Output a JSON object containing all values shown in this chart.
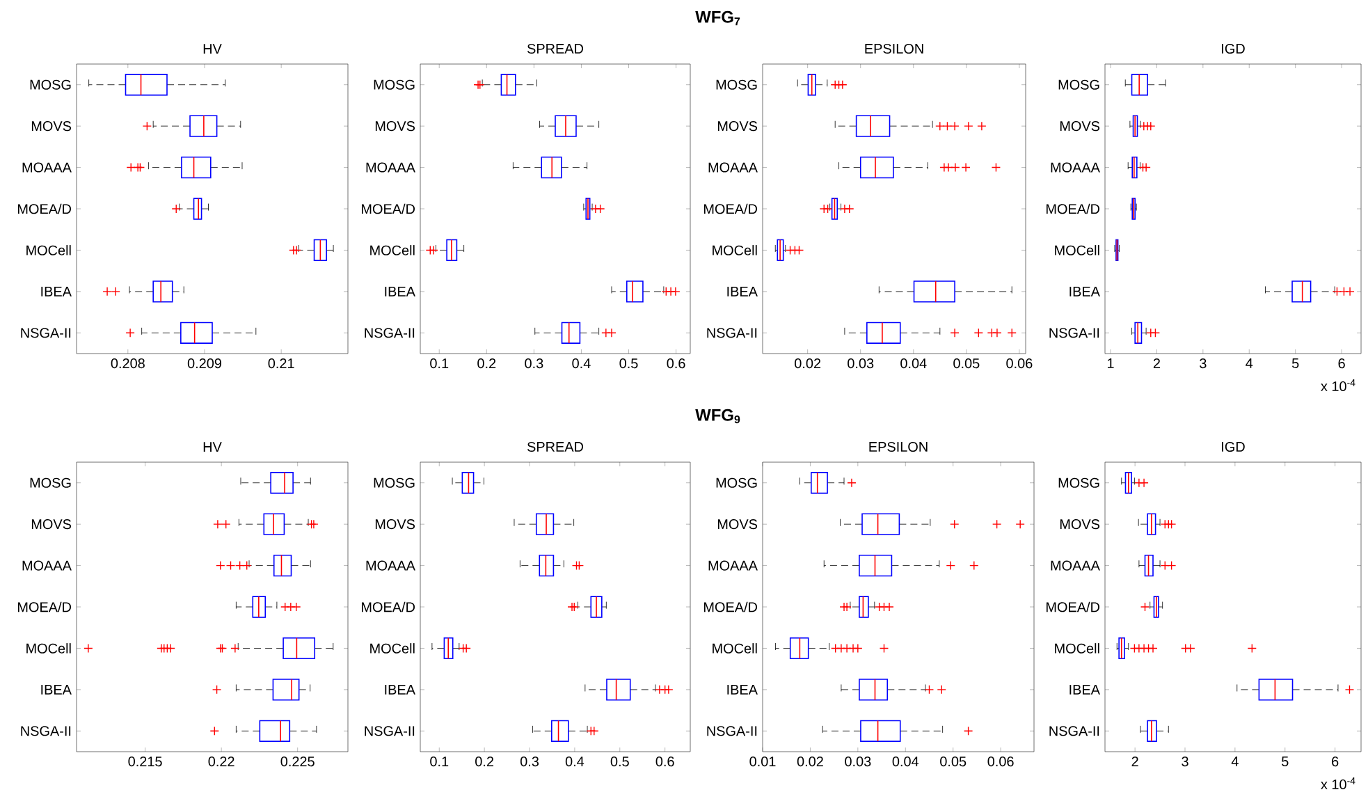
{
  "chart_data": [
    {
      "type": "box",
      "title": "HV",
      "orientation": "horizontal",
      "color": "#0000ff",
      "annotations": [
        "WFG$_{7}$"
      ],
      "categories": [
        "MOSG",
        "MOVS",
        "MOAAA",
        "MOEA/D",
        "MOCell",
        "IBEA",
        "NSGA-II"
      ],
      "xlim": [
        0.20733,
        0.21087
      ],
      "xticks": [
        0.208,
        0.209,
        0.21
      ],
      "boxes": [
        {
          "low": 0.20749,
          "q1": 0.20797,
          "median": 0.20817,
          "q3": 0.20851,
          "high": 0.20927
        },
        {
          "low": 0.20833,
          "q1": 0.20881,
          "median": 0.20899,
          "q3": 0.20916,
          "high": 0.20947,
          "outliers": [
            0.20825
          ]
        },
        {
          "low": 0.20827,
          "q1": 0.2087,
          "median": 0.20886,
          "q3": 0.20908,
          "high": 0.20949,
          "outliers": [
            0.20804,
            0.20813,
            0.20816
          ]
        },
        {
          "low": 0.20867,
          "q1": 0.20886,
          "median": 0.20892,
          "q3": 0.20896,
          "high": 0.20905,
          "outliers": [
            0.20863
          ]
        },
        {
          "low": 0.21023,
          "q1": 0.21043,
          "median": 0.21051,
          "q3": 0.21059,
          "high": 0.21068,
          "outliers": [
            0.21016,
            0.2102
          ]
        },
        {
          "low": 0.20802,
          "q1": 0.20833,
          "median": 0.20843,
          "q3": 0.20858,
          "high": 0.20873,
          "outliers": [
            0.20773,
            0.20784
          ]
        },
        {
          "low": 0.20818,
          "q1": 0.20869,
          "median": 0.20887,
          "q3": 0.2091,
          "high": 0.20967,
          "outliers": [
            0.20803
          ]
        }
      ]
    },
    {
      "type": "box",
      "title": "SPREAD",
      "orientation": "horizontal",
      "color": "#0000ff",
      "categories": [
        "MOSG",
        "MOVS",
        "MOAAA",
        "MOEA/D",
        "MOCell",
        "IBEA",
        "NSGA-II"
      ],
      "xlim": [
        0.06,
        0.63
      ],
      "xticks": [
        0.1,
        0.2,
        0.3,
        0.4,
        0.5,
        0.6
      ],
      "boxes": [
        {
          "low": 0.191,
          "q1": 0.231,
          "median": 0.243,
          "q3": 0.261,
          "high": 0.306,
          "outliers": [
            0.182,
            0.186
          ]
        },
        {
          "low": 0.312,
          "q1": 0.345,
          "median": 0.367,
          "q3": 0.389,
          "high": 0.437
        },
        {
          "low": 0.256,
          "q1": 0.316,
          "median": 0.338,
          "q3": 0.358,
          "high": 0.412
        },
        {
          "low": 0.405,
          "q1": 0.41,
          "median": 0.414,
          "q3": 0.418,
          "high": 0.423,
          "outliers": [
            0.43,
            0.44
          ]
        },
        {
          "low": 0.093,
          "q1": 0.116,
          "median": 0.126,
          "q3": 0.137,
          "high": 0.152,
          "outliers": [
            0.081,
            0.088
          ]
        },
        {
          "low": 0.464,
          "q1": 0.496,
          "median": 0.508,
          "q3": 0.53,
          "high": 0.574,
          "outliers": [
            0.579,
            0.589,
            0.599
          ]
        },
        {
          "low": 0.302,
          "q1": 0.359,
          "median": 0.374,
          "q3": 0.397,
          "high": 0.437,
          "outliers": [
            0.452,
            0.464
          ]
        }
      ]
    },
    {
      "type": "box",
      "title": "EPSILON",
      "orientation": "horizontal",
      "color": "#0000ff",
      "categories": [
        "MOSG",
        "MOVS",
        "MOAAA",
        "MOEA/D",
        "MOCell",
        "IBEA",
        "NSGA-II"
      ],
      "xlim": [
        0.0115,
        0.0612
      ],
      "xticks": [
        0.02,
        0.03,
        0.04,
        0.05,
        0.06
      ],
      "boxes": [
        {
          "low": 0.0181,
          "q1": 0.0201,
          "median": 0.0208,
          "q3": 0.0215,
          "high": 0.0237,
          "outliers": [
            0.0252,
            0.0259,
            0.0266
          ]
        },
        {
          "low": 0.0252,
          "q1": 0.0292,
          "median": 0.0319,
          "q3": 0.0355,
          "high": 0.0436,
          "outliers": [
            0.045,
            0.0464,
            0.0478,
            0.0504,
            0.0529
          ]
        },
        {
          "low": 0.0259,
          "q1": 0.03,
          "median": 0.0328,
          "q3": 0.0362,
          "high": 0.0427,
          "outliers": [
            0.0458,
            0.0466,
            0.0479,
            0.0499,
            0.0556
          ]
        },
        {
          "low": 0.0242,
          "q1": 0.0246,
          "median": 0.0251,
          "q3": 0.0256,
          "high": 0.0263,
          "outliers": [
            0.0231,
            0.0238,
            0.027,
            0.0279
          ]
        },
        {
          "low": 0.0139,
          "q1": 0.0143,
          "median": 0.0148,
          "q3": 0.0154,
          "high": 0.0158,
          "outliers": [
            0.0167,
            0.0176,
            0.0184
          ]
        },
        {
          "low": 0.0335,
          "q1": 0.0401,
          "median": 0.0442,
          "q3": 0.0478,
          "high": 0.0586
        },
        {
          "low": 0.027,
          "q1": 0.0312,
          "median": 0.0341,
          "q3": 0.0375,
          "high": 0.045,
          "outliers": [
            0.0478,
            0.0523,
            0.0548,
            0.0558,
            0.0586
          ]
        }
      ]
    },
    {
      "type": "box",
      "title": "IGD",
      "xlabel": "x 10$^{-4}$",
      "orientation": "horizontal",
      "color": "#0000ff",
      "categories": [
        "MOSG",
        "MOVS",
        "MOAAA",
        "MOEA/D",
        "MOCell",
        "IBEA",
        "NSGA-II"
      ],
      "xlim": [
        0.88,
        6.42
      ],
      "xticks": [
        1,
        2,
        3,
        4,
        5,
        6
      ],
      "boxes": [
        {
          "low": 1.32,
          "q1": 1.46,
          "median": 1.62,
          "q3": 1.8,
          "high": 2.19
        },
        {
          "low": 1.42,
          "q1": 1.49,
          "median": 1.53,
          "q3": 1.58,
          "high": 1.65,
          "outliers": [
            1.72,
            1.8,
            1.87
          ]
        },
        {
          "low": 1.38,
          "q1": 1.47,
          "median": 1.51,
          "q3": 1.57,
          "high": 1.64,
          "outliers": [
            1.7,
            1.77
          ]
        },
        {
          "low": 1.44,
          "q1": 1.47,
          "median": 1.5,
          "q3": 1.53,
          "high": 1.56
        },
        {
          "low": 1.09,
          "q1": 1.12,
          "median": 1.14,
          "q3": 1.16,
          "high": 1.19
        },
        {
          "low": 4.35,
          "q1": 4.93,
          "median": 5.15,
          "q3": 5.33,
          "high": 5.85,
          "outliers": [
            5.9,
            6.05,
            6.18
          ]
        },
        {
          "low": 1.46,
          "q1": 1.53,
          "median": 1.59,
          "q3": 1.67,
          "high": 1.77,
          "outliers": [
            1.87,
            1.97
          ]
        }
      ]
    },
    {
      "type": "box",
      "title": "HV",
      "orientation": "horizontal",
      "color": "#0000ff",
      "annotations": [
        "WFG$_{9}$"
      ],
      "categories": [
        "MOSG",
        "MOVS",
        "MOAAA",
        "MOEA/D",
        "MOCell",
        "IBEA",
        "NSGA-II"
      ],
      "xlim": [
        0.2105,
        0.2283
      ],
      "xticks": [
        0.215,
        0.22,
        0.225
      ],
      "boxes": [
        {
          "low": 0.22127,
          "q1": 0.22324,
          "median": 0.22415,
          "q3": 0.2247,
          "high": 0.22585
        },
        {
          "low": 0.22115,
          "q1": 0.22279,
          "median": 0.22342,
          "q3": 0.22412,
          "high": 0.2257,
          "outliers": [
            0.21976,
            0.2203,
            0.22591,
            0.22606
          ]
        },
        {
          "low": 0.22182,
          "q1": 0.22345,
          "median": 0.22394,
          "q3": 0.22458,
          "high": 0.22585,
          "outliers": [
            0.21994,
            0.22061,
            0.22121,
            0.22167
          ]
        },
        {
          "low": 0.22097,
          "q1": 0.22206,
          "median": 0.22245,
          "q3": 0.22288,
          "high": 0.22364,
          "outliers": [
            0.22418,
            0.22455,
            0.22491
          ]
        },
        {
          "low": 0.2211,
          "q1": 0.22406,
          "median": 0.22494,
          "q3": 0.22612,
          "high": 0.22733,
          "outliers": [
            0.21127,
            0.21606,
            0.21624,
            0.21645,
            0.21667,
            0.21994,
            0.22006,
            0.2209
          ]
        },
        {
          "low": 0.22097,
          "q1": 0.22339,
          "median": 0.22461,
          "q3": 0.22509,
          "high": 0.22582,
          "outliers": [
            0.2197
          ]
        },
        {
          "low": 0.22097,
          "q1": 0.22252,
          "median": 0.22388,
          "q3": 0.22448,
          "high": 0.22624,
          "outliers": [
            0.21955
          ]
        }
      ]
    },
    {
      "type": "box",
      "title": "SPREAD",
      "orientation": "horizontal",
      "color": "#0000ff",
      "categories": [
        "MOSG",
        "MOVS",
        "MOAAA",
        "MOEA/D",
        "MOCell",
        "IBEA",
        "NSGA-II"
      ],
      "xlim": [
        0.058,
        0.656
      ],
      "xticks": [
        0.1,
        0.2,
        0.3,
        0.4,
        0.5,
        0.6
      ],
      "boxes": [
        {
          "low": 0.129,
          "q1": 0.151,
          "median": 0.165,
          "q3": 0.176,
          "high": 0.199
        },
        {
          "low": 0.266,
          "q1": 0.315,
          "median": 0.337,
          "q3": 0.353,
          "high": 0.398
        },
        {
          "low": 0.279,
          "q1": 0.322,
          "median": 0.336,
          "q3": 0.353,
          "high": 0.376,
          "outliers": [
            0.404,
            0.41
          ]
        },
        {
          "low": 0.407,
          "q1": 0.436,
          "median": 0.448,
          "q3": 0.46,
          "high": 0.47,
          "outliers": [
            0.394,
            0.399
          ]
        },
        {
          "low": 0.084,
          "q1": 0.111,
          "median": 0.12,
          "q3": 0.13,
          "high": 0.144,
          "outliers": [
            0.153,
            0.16
          ]
        },
        {
          "low": 0.423,
          "q1": 0.471,
          "median": 0.492,
          "q3": 0.523,
          "high": 0.579,
          "outliers": [
            0.588,
            0.6,
            0.608
          ]
        },
        {
          "low": 0.307,
          "q1": 0.349,
          "median": 0.364,
          "q3": 0.386,
          "high": 0.428,
          "outliers": [
            0.436,
            0.443
          ]
        }
      ]
    },
    {
      "type": "box",
      "title": "EPSILON",
      "orientation": "horizontal",
      "color": "#0000ff",
      "categories": [
        "MOSG",
        "MOVS",
        "MOAAA",
        "MOEA/D",
        "MOCell",
        "IBEA",
        "NSGA-II"
      ],
      "xlim": [
        0.01,
        0.067
      ],
      "xticks": [
        0.01,
        0.02,
        0.03,
        0.04,
        0.05,
        0.06
      ],
      "boxes": [
        {
          "low": 0.0178,
          "q1": 0.0202,
          "median": 0.0215,
          "q3": 0.0236,
          "high": 0.0271,
          "outliers": [
            0.0287
          ]
        },
        {
          "low": 0.0263,
          "q1": 0.0309,
          "median": 0.0342,
          "q3": 0.0387,
          "high": 0.0452,
          "outliers": [
            0.0503,
            0.0592,
            0.0641
          ]
        },
        {
          "low": 0.0229,
          "q1": 0.0303,
          "median": 0.0336,
          "q3": 0.0371,
          "high": 0.0471,
          "outliers": [
            0.0495,
            0.0544
          ]
        },
        {
          "low": 0.0284,
          "q1": 0.0303,
          "median": 0.0311,
          "q3": 0.0322,
          "high": 0.0335,
          "outliers": [
            0.0271,
            0.0277,
            0.0345,
            0.0355,
            0.0366
          ]
        },
        {
          "low": 0.0127,
          "q1": 0.0158,
          "median": 0.0178,
          "q3": 0.0196,
          "high": 0.024,
          "outliers": [
            0.0253,
            0.0265,
            0.0277,
            0.029,
            0.03,
            0.0355
          ]
        },
        {
          "low": 0.0265,
          "q1": 0.0303,
          "median": 0.0336,
          "q3": 0.0362,
          "high": 0.0442,
          "outliers": [
            0.045,
            0.0476
          ]
        },
        {
          "low": 0.0226,
          "q1": 0.0306,
          "median": 0.0342,
          "q3": 0.0389,
          "high": 0.0478,
          "outliers": [
            0.0532
          ]
        }
      ]
    },
    {
      "type": "box",
      "title": "IGD",
      "xlabel": "x 10$^{-4}$",
      "orientation": "horizontal",
      "color": "#0000ff",
      "categories": [
        "MOSG",
        "MOVS",
        "MOAAA",
        "MOEA/D",
        "MOCell",
        "IBEA",
        "NSGA-II"
      ],
      "xlim": [
        1.4,
        6.52
      ],
      "xticks": [
        2,
        3,
        4,
        5,
        6
      ],
      "boxes": [
        {
          "low": 1.73,
          "q1": 1.81,
          "median": 1.87,
          "q3": 1.93,
          "high": 1.99,
          "outliers": [
            2.08,
            2.18
          ]
        },
        {
          "low": 2.07,
          "q1": 2.25,
          "median": 2.33,
          "q3": 2.41,
          "high": 2.5,
          "outliers": [
            2.6,
            2.67,
            2.73
          ]
        },
        {
          "low": 2.08,
          "q1": 2.2,
          "median": 2.27,
          "q3": 2.36,
          "high": 2.5,
          "outliers": [
            2.6,
            2.73
          ]
        },
        {
          "low": 2.3,
          "q1": 2.38,
          "median": 2.43,
          "q3": 2.47,
          "high": 2.55,
          "outliers": [
            2.2
          ]
        },
        {
          "low": 1.64,
          "q1": 1.68,
          "median": 1.73,
          "q3": 1.79,
          "high": 1.87,
          "outliers": [
            1.99,
            2.08,
            2.18,
            2.27,
            2.36,
            3.01,
            3.11,
            4.34
          ]
        },
        {
          "low": 4.04,
          "q1": 4.48,
          "median": 4.8,
          "q3": 5.15,
          "high": 6.06,
          "outliers": [
            6.29
          ]
        },
        {
          "low": 2.11,
          "q1": 2.25,
          "median": 2.33,
          "q3": 2.43,
          "high": 2.67
        }
      ]
    }
  ]
}
